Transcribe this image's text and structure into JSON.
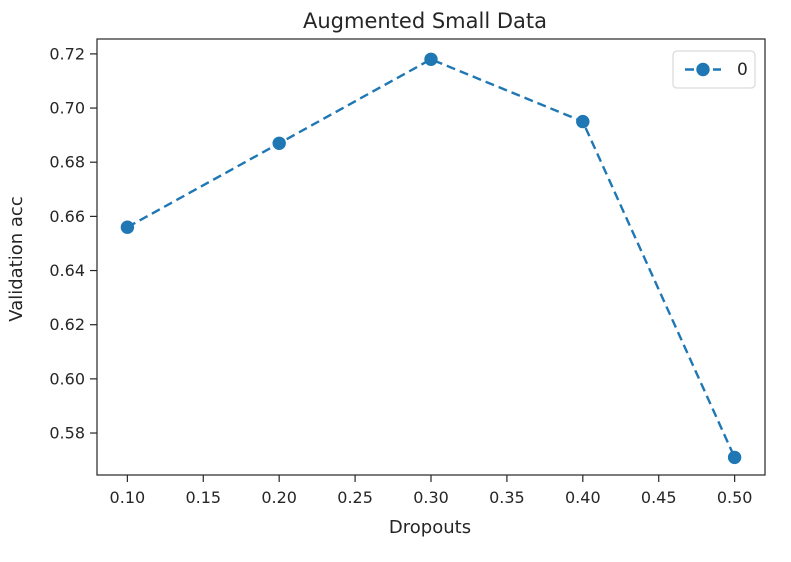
{
  "chart_data": {
    "type": "line",
    "title": "Augmented Small Data",
    "xlabel": "Dropouts",
    "ylabel": "Validation acc",
    "xlim": [
      0.08,
      0.52
    ],
    "ylim": [
      0.5645,
      0.7255
    ],
    "xticks": [
      0.1,
      0.15,
      0.2,
      0.25,
      0.3,
      0.35,
      0.4,
      0.45,
      0.5
    ],
    "xtick_labels": [
      "0.10",
      "0.15",
      "0.20",
      "0.25",
      "0.30",
      "0.35",
      "0.40",
      "0.45",
      "0.50"
    ],
    "yticks": [
      0.58,
      0.6,
      0.62,
      0.64,
      0.66,
      0.68,
      0.7,
      0.72
    ],
    "ytick_labels": [
      "0.58",
      "0.60",
      "0.62",
      "0.64",
      "0.66",
      "0.68",
      "0.70",
      "0.72"
    ],
    "grid": false,
    "legend_position": "top-right",
    "series": [
      {
        "name": "0",
        "color": "#1f77b4",
        "linestyle": "dashed",
        "marker": "circle",
        "x": [
          0.1,
          0.2,
          0.3,
          0.4,
          0.5
        ],
        "y": [
          0.656,
          0.687,
          0.718,
          0.695,
          0.571
        ]
      }
    ]
  }
}
